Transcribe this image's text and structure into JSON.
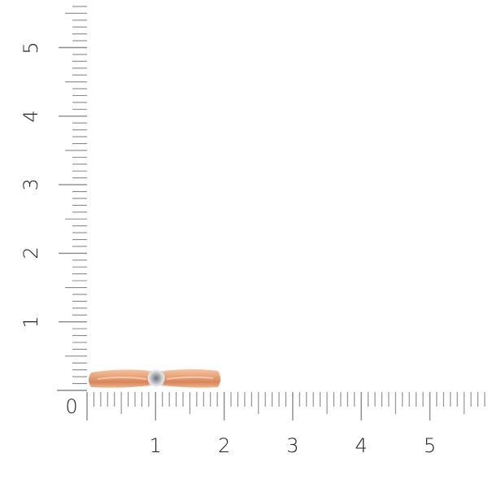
{
  "ruler": {
    "unit_labels_vertical": [
      "1",
      "2",
      "3",
      "4",
      "5"
    ],
    "unit_labels_horizontal": [
      "1",
      "2",
      "3",
      "4",
      "5"
    ],
    "origin_label": "0",
    "tick_color": "#8a8a8a"
  },
  "product": {
    "type": "ring",
    "metal_color": "#e9a77f",
    "stone_color": "#b9bcc2"
  }
}
